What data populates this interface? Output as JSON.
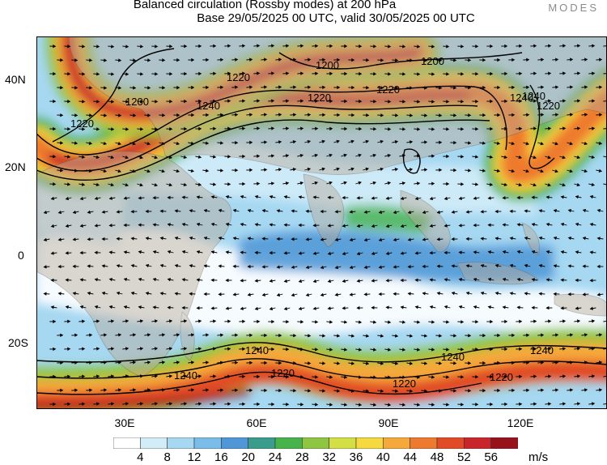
{
  "header": {
    "title_line1": "Balanced circulation (Rossby modes) at 200 hPa",
    "title_line2": "Base 29/05/2025 00 UTC, valid 30/05/2025 00 UTC",
    "brand": "MODES"
  },
  "map": {
    "lat_labels": [
      "40N",
      "20N",
      "0",
      "20S"
    ],
    "lon_labels": [
      "30E",
      "60E",
      "90E",
      "120E"
    ],
    "contour_labels": [
      "1200",
      "1200",
      "1200",
      "1220",
      "1220",
      "1220",
      "1220",
      "1240",
      "1240",
      "1240",
      "1220",
      "1240",
      "1240",
      "1240",
      "1240",
      "1220",
      "1220",
      "1220"
    ],
    "wind_colors": [
      "#ffffff",
      "#d2ecf8",
      "#a6d8f2",
      "#7bbde9",
      "#4f97d6",
      "#3a9d8c",
      "#47b34b",
      "#8fc641",
      "#d4df45",
      "#f6d83f",
      "#f5a93b",
      "#ee7a2f",
      "#e14c26",
      "#c8262a",
      "#98121b"
    ]
  },
  "legend": {
    "labels": [
      "4",
      "8",
      "12",
      "16",
      "20",
      "24",
      "28",
      "32",
      "36",
      "40",
      "44",
      "48",
      "52",
      "56"
    ],
    "unit": "m/s"
  }
}
